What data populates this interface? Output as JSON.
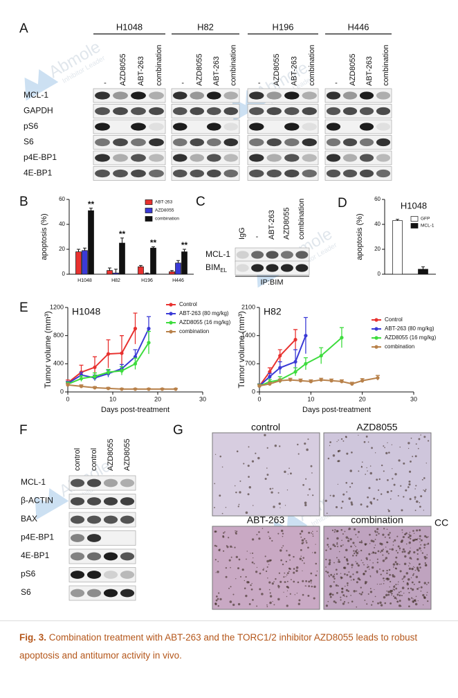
{
  "panel_labels": [
    "A",
    "B",
    "C",
    "D",
    "E",
    "F",
    "G"
  ],
  "watermark": {
    "brand": "Abmole",
    "tagline": "Inhibitor Leader"
  },
  "panel_a": {
    "cell_lines": [
      "H1048",
      "H82",
      "H196",
      "H446"
    ],
    "lanes": [
      "-",
      "AZD8055",
      "ABT-263",
      "combination"
    ],
    "rows": [
      "MCL-1",
      "GAPDH",
      "pS6",
      "S6",
      "p4E-BP1",
      "4E-BP1"
    ]
  },
  "panel_c": {
    "lanes": [
      "IgG",
      "-",
      "ABT-263",
      "AZD8055",
      "combination"
    ],
    "rows": [
      "MCL-1",
      "BIM"
    ],
    "bim_subscript": "EL",
    "ip": "IP:BIM"
  },
  "panel_f": {
    "lanes": [
      "control",
      "control",
      "AZD8055",
      "AZD8055"
    ],
    "rows": [
      "MCL-1",
      "β-ACTIN",
      "BAX",
      "p4E-BP1",
      "4E-BP1",
      "pS6",
      "S6"
    ]
  },
  "panel_g": {
    "images": [
      "control",
      "AZD8055",
      "ABT-263",
      "combination"
    ],
    "edge_text": "CC"
  },
  "caption": {
    "label": "Fig. 3.",
    "text": "Combination treatment with ABT-263 and the TORC1/2 inhibitor AZD8055 leads to robust apoptosis and antitumor activity in vivo."
  },
  "chart_data": [
    {
      "type": "bar",
      "ylabel": "apoptosis (%)",
      "categories": [
        "H1048",
        "H82",
        "H196",
        "H446"
      ],
      "series": [
        {
          "name": "ABT-263",
          "color": "#e8312f",
          "values": [
            18,
            3,
            6,
            2
          ],
          "errors": [
            2,
            2,
            1,
            1
          ]
        },
        {
          "name": "AZD8055",
          "color": "#3a3ad6",
          "values": [
            19,
            1,
            0.5,
            9
          ],
          "errors": [
            2,
            3,
            0.5,
            2
          ]
        },
        {
          "name": "combination",
          "color": "#111111",
          "values": [
            51,
            25,
            21,
            18
          ],
          "errors": [
            2,
            4,
            1,
            2
          ]
        }
      ],
      "significance": [
        "**",
        "**",
        "**",
        "**"
      ],
      "ylim": [
        0,
        60
      ],
      "yticks": [
        0,
        20,
        40,
        60
      ]
    },
    {
      "type": "bar",
      "title": "H1048",
      "ylabel": "apoptosis (%)",
      "categories": [
        null,
        null
      ],
      "series": [
        {
          "name": "GFP",
          "color": "#ffffff",
          "values": [
            43,
            null
          ],
          "errors": [
            1,
            null
          ]
        },
        {
          "name": "MCL-1",
          "color": "#111111",
          "values": [
            null,
            4
          ],
          "errors": [
            null,
            2
          ]
        }
      ],
      "ylim": [
        0,
        60
      ],
      "yticks": [
        0,
        20,
        40,
        60
      ]
    },
    {
      "type": "line",
      "title": "H1048",
      "xlabel": "Days post-treatment",
      "ylabel": "Tumor volume (mm³)",
      "series": [
        {
          "name": "Control",
          "color": "#e8312f",
          "x": [
            0,
            3,
            6,
            9,
            12,
            15
          ],
          "values": [
            130,
            280,
            350,
            540,
            550,
            900
          ],
          "errors": [
            40,
            100,
            150,
            200,
            250,
            220
          ]
        },
        {
          "name": "ABT-263 (80 mg/kg)",
          "color": "#3a3ad6",
          "x": [
            0,
            3,
            6,
            9,
            12,
            15,
            18
          ],
          "values": [
            120,
            240,
            200,
            260,
            330,
            500,
            900
          ],
          "errors": [
            30,
            40,
            40,
            50,
            60,
            100,
            170
          ]
        },
        {
          "name": "AZD8055 (16 mg/kg)",
          "color": "#3ddc3d",
          "x": [
            0,
            3,
            6,
            9,
            12,
            15,
            18
          ],
          "values": [
            110,
            190,
            220,
            280,
            300,
            400,
            700
          ],
          "errors": [
            30,
            40,
            50,
            40,
            60,
            80,
            160
          ]
        },
        {
          "name": "combination",
          "color": "#b8814a",
          "x": [
            0,
            3,
            6,
            9,
            12,
            15,
            18,
            21,
            24
          ],
          "values": [
            100,
            80,
            60,
            50,
            40,
            40,
            40,
            40,
            40
          ],
          "errors": [
            20,
            20,
            15,
            15,
            10,
            10,
            10,
            10,
            10
          ]
        }
      ],
      "xlim": [
        0,
        30
      ],
      "xticks": [
        0,
        10,
        20,
        30
      ],
      "ylim": [
        0,
        1200
      ],
      "yticks": [
        0,
        400,
        800,
        1200
      ]
    },
    {
      "type": "line",
      "title": "H82",
      "xlabel": "Days post-treatment",
      "ylabel": "Tumor volume (mm³)",
      "series": [
        {
          "name": "Control",
          "color": "#e8312f",
          "x": [
            0,
            2,
            4,
            7
          ],
          "values": [
            150,
            500,
            900,
            1300
          ],
          "errors": [
            50,
            100,
            150,
            250
          ]
        },
        {
          "name": "ABT-263 (80 mg/kg)",
          "color": "#3a3ad6",
          "x": [
            0,
            2,
            4,
            7,
            9
          ],
          "values": [
            150,
            380,
            600,
            750,
            1400
          ],
          "errors": [
            50,
            80,
            150,
            300,
            450
          ]
        },
        {
          "name": "AZD8055 (16 mg/kg)",
          "color": "#3ddc3d",
          "x": [
            0,
            2,
            4,
            7,
            9,
            12,
            16
          ],
          "values": [
            150,
            250,
            300,
            500,
            700,
            900,
            1350
          ],
          "errors": [
            40,
            60,
            80,
            100,
            150,
            200,
            250
          ]
        },
        {
          "name": "combination",
          "color": "#b8814a",
          "x": [
            0,
            2,
            4,
            6,
            8,
            10,
            12,
            14,
            16,
            18,
            20,
            23
          ],
          "values": [
            150,
            200,
            280,
            300,
            280,
            260,
            300,
            280,
            260,
            200,
            280,
            350
          ],
          "errors": [
            30,
            40,
            40,
            40,
            40,
            40,
            40,
            40,
            40,
            40,
            50,
            60
          ]
        }
      ],
      "xlim": [
        0,
        30
      ],
      "xticks": [
        0,
        10,
        20,
        30
      ],
      "ylim": [
        0,
        2100
      ],
      "yticks": [
        0,
        700,
        1400,
        2100
      ]
    }
  ]
}
